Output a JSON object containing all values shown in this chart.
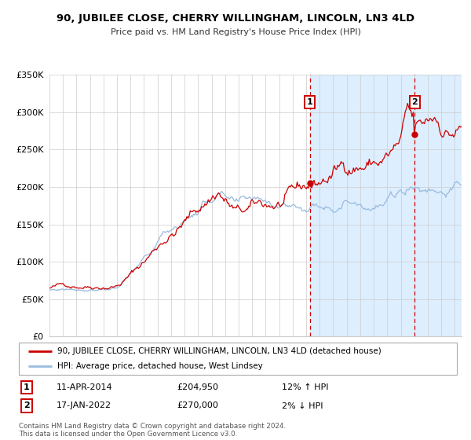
{
  "title": "90, JUBILEE CLOSE, CHERRY WILLINGHAM, LINCOLN, LN3 4LD",
  "subtitle": "Price paid vs. HM Land Registry's House Price Index (HPI)",
  "ylim": [
    0,
    350000
  ],
  "yticks": [
    0,
    50000,
    100000,
    150000,
    200000,
    250000,
    300000,
    350000
  ],
  "ytick_labels": [
    "£0",
    "£50K",
    "£100K",
    "£150K",
    "£200K",
    "£250K",
    "£300K",
    "£350K"
  ],
  "xlim_start": 1995.0,
  "xlim_end": 2025.5,
  "sale1_x": 2014.27,
  "sale1_y": 204950,
  "sale1_label": "1",
  "sale1_date": "11-APR-2014",
  "sale1_price": "£204,950",
  "sale1_hpi": "12% ↑ HPI",
  "sale2_x": 2022.04,
  "sale2_y": 270000,
  "sale2_label": "2",
  "sale2_date": "17-JAN-2022",
  "sale2_price": "£270,000",
  "sale2_hpi": "2% ↓ HPI",
  "legend_line1": "90, JUBILEE CLOSE, CHERRY WILLINGHAM, LINCOLN, LN3 4LD (detached house)",
  "legend_line2": "HPI: Average price, detached house, West Lindsey",
  "footer1": "Contains HM Land Registry data © Crown copyright and database right 2024.",
  "footer2": "This data is licensed under the Open Government Licence v3.0.",
  "red_color": "#cc0000",
  "blue_color": "#99bbdd",
  "shade_color": "#ddeeff",
  "grid_color": "#cccccc"
}
